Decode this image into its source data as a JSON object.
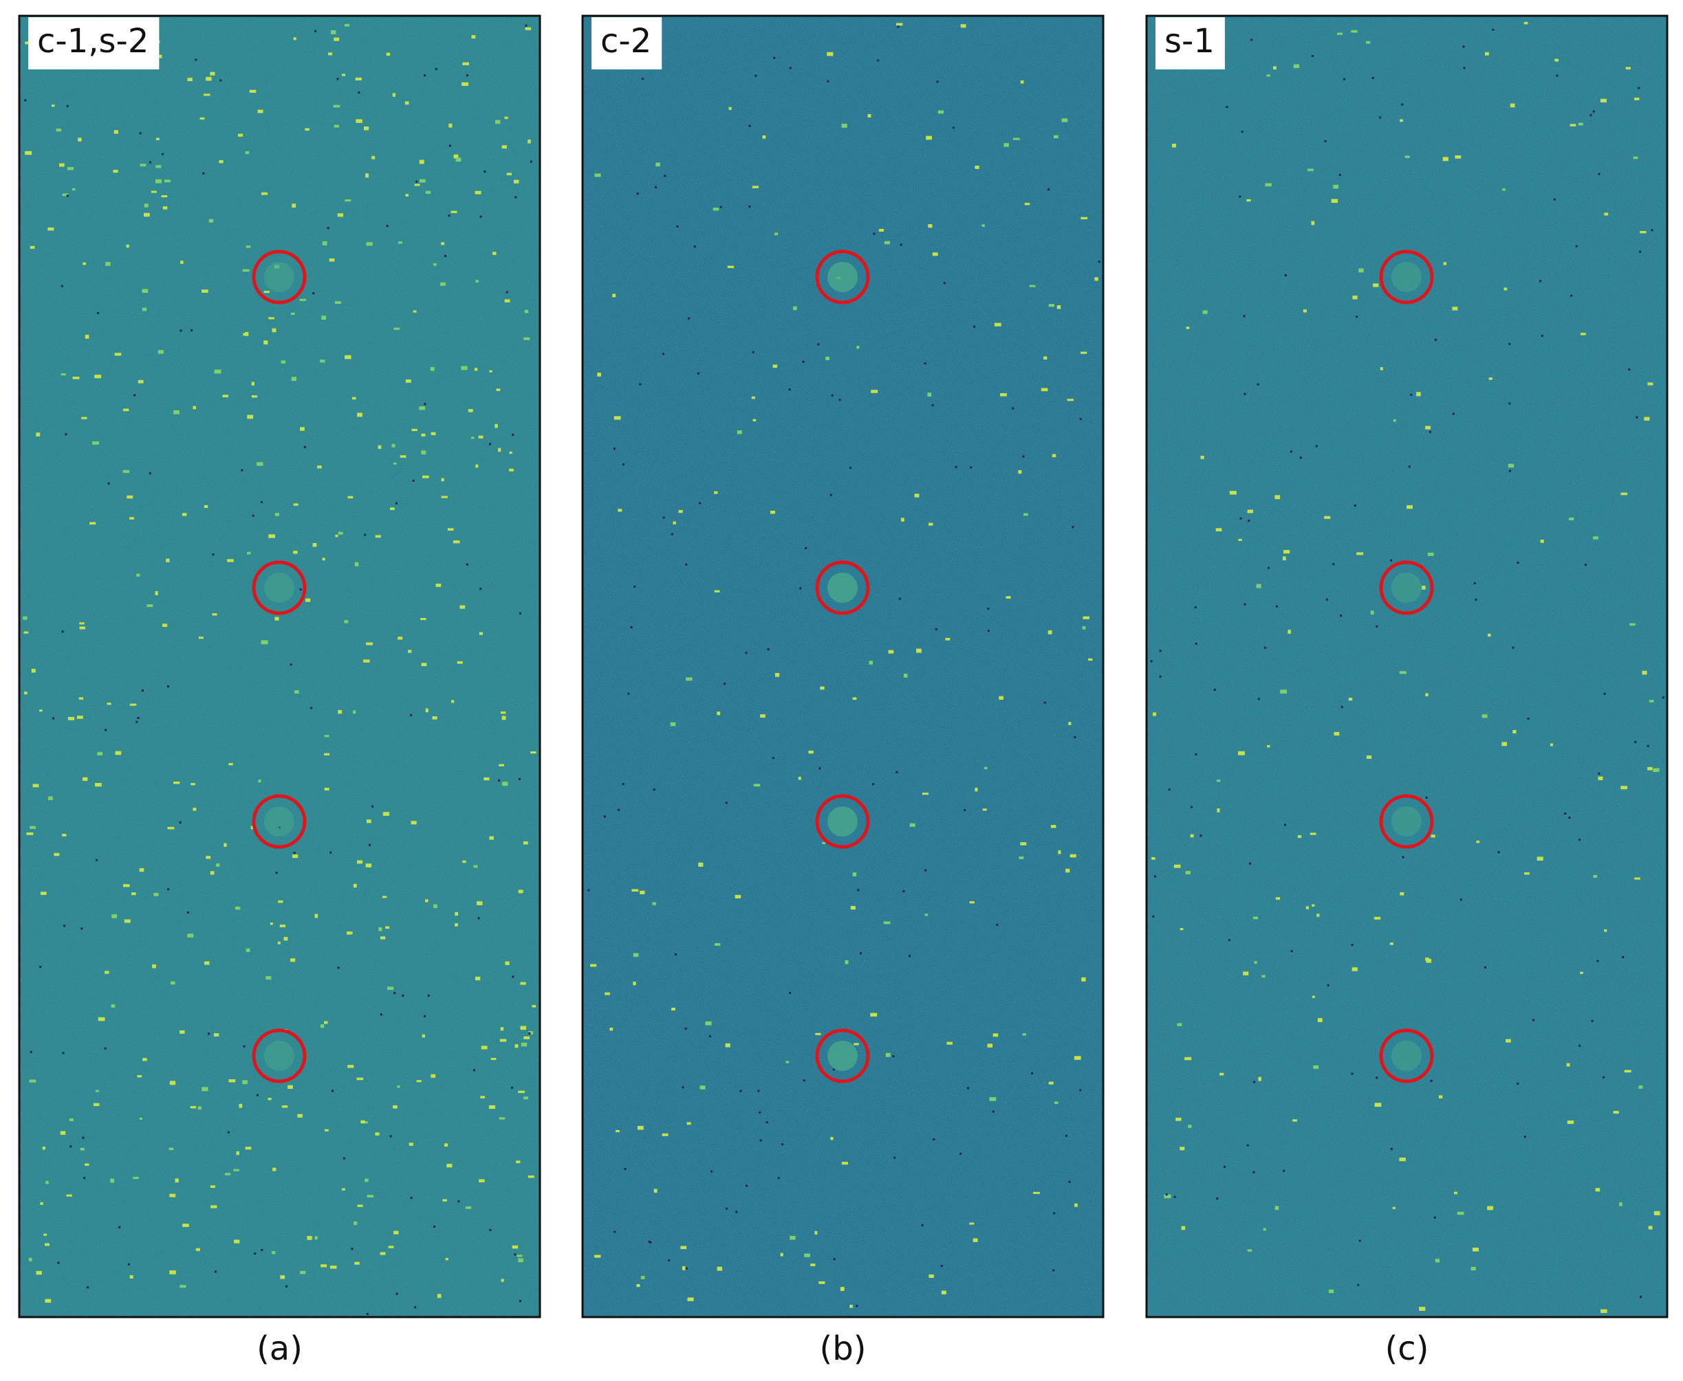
{
  "panels": [
    {
      "tag": "c-1,s-2",
      "caption": "(a)"
    },
    {
      "tag": "c-2",
      "caption": "(b)"
    },
    {
      "tag": "s-1",
      "caption": "(c)"
    }
  ]
}
